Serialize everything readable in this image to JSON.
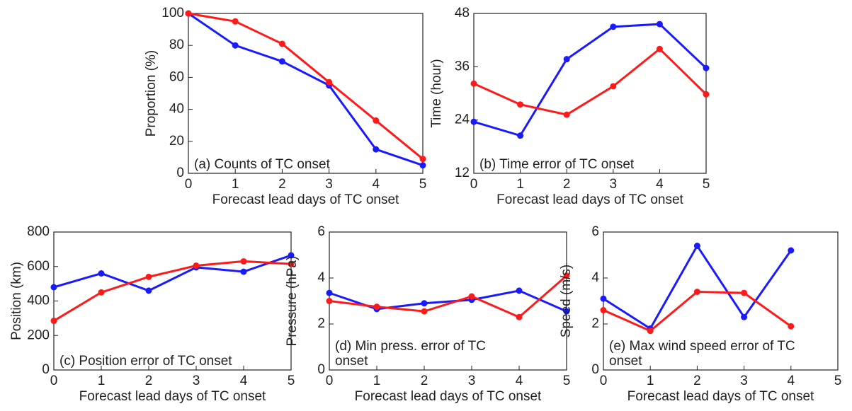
{
  "chart_data": [
    {
      "type": "line",
      "ylabel": "Proportion (%)",
      "xlabel": "Forecast lead days of TC onset",
      "annotation": "(a) Counts of TC onset",
      "x": [
        0,
        1,
        2,
        3,
        4,
        5
      ],
      "xlim": [
        0,
        5
      ],
      "xticks": [
        0,
        1,
        2,
        3,
        4,
        5
      ],
      "ylim": [
        0,
        100
      ],
      "yticks": [
        0,
        20,
        40,
        60,
        80,
        100
      ],
      "series": [
        {
          "color": "#1a1aff",
          "values": [
            100,
            80,
            70,
            55,
            15,
            5
          ]
        },
        {
          "color": "#ff1a1a",
          "values": [
            100,
            95,
            81,
            57,
            33,
            9
          ]
        }
      ]
    },
    {
      "type": "line",
      "ylabel": "Time  (hour)",
      "xlabel": "Forecast lead days of TC onset",
      "annotation": "(b) Time error of TC onset",
      "x": [
        0,
        1,
        2,
        3,
        4,
        5
      ],
      "xlim": [
        0,
        5
      ],
      "xticks": [
        0,
        1,
        2,
        3,
        4,
        5
      ],
      "ylim": [
        12,
        48
      ],
      "yticks": [
        12,
        24,
        36,
        48
      ],
      "series": [
        {
          "color": "#1a1aff",
          "values": [
            23.6,
            20.5,
            37.7,
            45,
            45.6,
            35.7
          ]
        },
        {
          "color": "#ff1a1a",
          "values": [
            32.2,
            27.5,
            25.2,
            31.6,
            40,
            29.8
          ]
        }
      ]
    },
    {
      "type": "line",
      "ylabel": "Position (km)",
      "xlabel": "Forecast lead days of TC onset",
      "annotation": "(c) Position error of TC onset",
      "x": [
        0,
        1,
        2,
        3,
        4,
        5
      ],
      "xlim": [
        0,
        5
      ],
      "xticks": [
        0,
        1,
        2,
        3,
        4,
        5
      ],
      "ylim": [
        0,
        800
      ],
      "yticks": [
        0,
        200,
        400,
        600,
        800
      ],
      "series": [
        {
          "color": "#1a1aff",
          "values": [
            480,
            560,
            460,
            595,
            570,
            665
          ]
        },
        {
          "color": "#ff1a1a",
          "values": [
            285,
            450,
            540,
            605,
            630,
            615
          ]
        }
      ]
    },
    {
      "type": "line",
      "ylabel": "Pressure (hPa)",
      "xlabel": "Forecast lead days of TC onset",
      "annotation": "(d) Min press. error of TC onset",
      "x": [
        0,
        1,
        2,
        3,
        4,
        5
      ],
      "xlim": [
        0,
        5
      ],
      "xticks": [
        0,
        1,
        2,
        3,
        4,
        5
      ],
      "ylim": [
        0,
        6
      ],
      "yticks": [
        0,
        2,
        4,
        6
      ],
      "series": [
        {
          "color": "#1a1aff",
          "values": [
            3.35,
            2.65,
            2.9,
            3.05,
            3.45,
            2.55
          ]
        },
        {
          "color": "#ff1a1a",
          "values": [
            3.0,
            2.75,
            2.55,
            3.2,
            2.3,
            4.1
          ]
        }
      ]
    },
    {
      "type": "line",
      "ylabel": "Speed (m/s)",
      "xlabel": "Forecast lead days of TC onset",
      "annotation": "(e) Max wind speed error of TC onset",
      "x": [
        0,
        1,
        2,
        3,
        4
      ],
      "xlim": [
        0,
        5
      ],
      "xticks": [
        0,
        1,
        2,
        3,
        4,
        5
      ],
      "ylim": [
        0,
        6
      ],
      "yticks": [
        0,
        2,
        4,
        6
      ],
      "series": [
        {
          "color": "#1a1aff",
          "values": [
            3.1,
            1.8,
            5.4,
            2.3,
            5.2
          ]
        },
        {
          "color": "#ff1a1a",
          "values": [
            2.6,
            1.7,
            3.4,
            3.35,
            1.9
          ]
        }
      ]
    }
  ]
}
